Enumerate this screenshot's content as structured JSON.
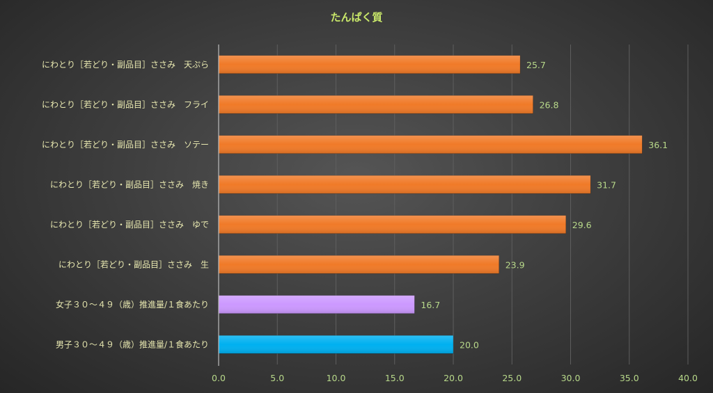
{
  "chart_data": {
    "type": "bar",
    "orientation": "horizontal",
    "title": "たんぱく質",
    "categories": [
      "にわとり［若どり・副品目］ささみ　天ぷら",
      "にわとり［若どり・副品目］ささみ　フライ",
      "にわとり［若どり・副品目］ささみ　ソテー",
      "にわとり［若どり・副品目］ささみ　焼き",
      "にわとり［若どり・副品目］ささみ　ゆで",
      "にわとり［若どり・副品目］ささみ　生",
      "女子３０～４９（歳）推進量/１食あたり",
      "男子３０～４９（歳）推進量/１食あたり"
    ],
    "values": [
      25.7,
      26.8,
      36.1,
      31.7,
      29.6,
      23.9,
      16.7,
      20.0
    ],
    "value_labels": [
      "25.7",
      "26.8",
      "36.1",
      "31.7",
      "29.6",
      "23.9",
      "16.7",
      "20.0"
    ],
    "bar_colors": [
      "#f07a28",
      "#f07a28",
      "#f07a28",
      "#f07a28",
      "#f07a28",
      "#f07a28",
      "#cc99ff",
      "#00b0f0"
    ],
    "xlim": [
      0,
      40
    ],
    "xticks": [
      "0.0",
      "5.0",
      "10.0",
      "15.0",
      "20.0",
      "25.0",
      "30.0",
      "35.0",
      "40.0"
    ],
    "xlabel": "",
    "ylabel": "",
    "grid": true,
    "legend": "none"
  }
}
